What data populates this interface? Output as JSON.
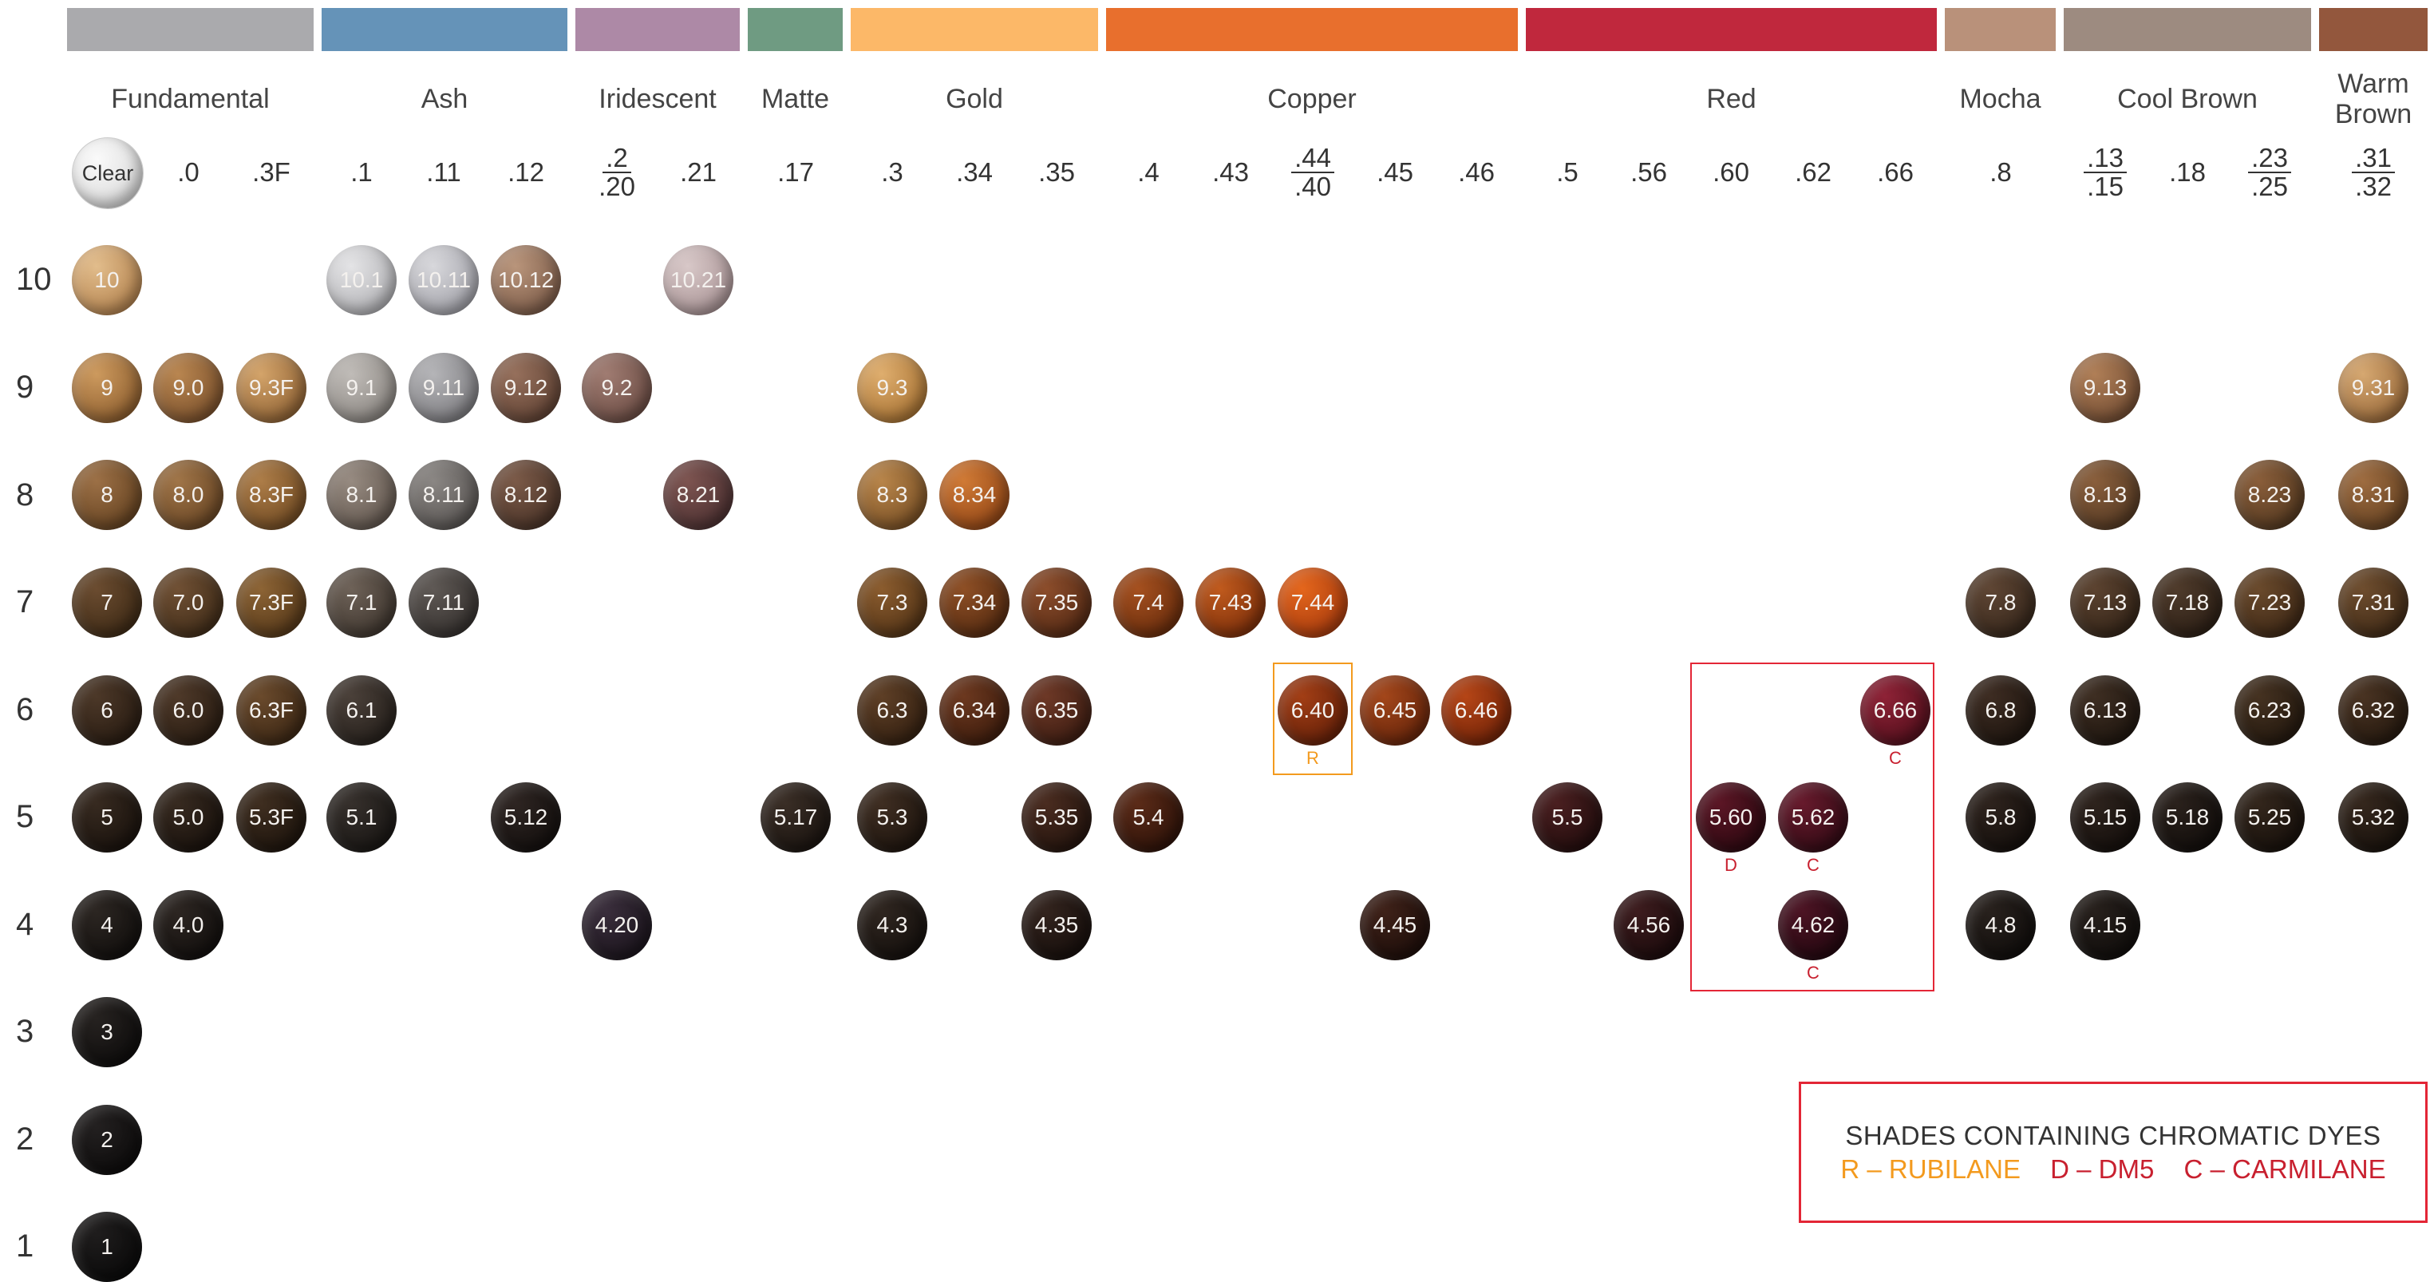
{
  "families": [
    {
      "name": "Fundamental",
      "color": "#aaaaad"
    },
    {
      "name": "Ash",
      "color": "#6593b8"
    },
    {
      "name": "Iridescent",
      "color": "#ad89a6"
    },
    {
      "name": "Matte",
      "color": "#6f9b82"
    },
    {
      "name": "Gold",
      "color": "#fcb868"
    },
    {
      "name": "Copper",
      "color": "#e86f2d"
    },
    {
      "name": "Red",
      "color": "#c0283d"
    },
    {
      "name": "Mocha",
      "color": "#b9917a"
    },
    {
      "name": "Cool Brown",
      "color": "#9d8b80"
    },
    {
      "name": "Warm Brown",
      "color": "#93573d"
    }
  ],
  "columns": [
    {
      "label": "Clear"
    },
    {
      "label": ".0"
    },
    {
      "label": ".3F"
    },
    {
      "label": ".1"
    },
    {
      "label": ".11"
    },
    {
      "label": ".12"
    },
    {
      "label_top": ".2",
      "label_bottom": ".20"
    },
    {
      "label": ".21"
    },
    {
      "label": ".17"
    },
    {
      "label": ".3"
    },
    {
      "label": ".34"
    },
    {
      "label": ".35"
    },
    {
      "label": ".4"
    },
    {
      "label": ".43"
    },
    {
      "label_top": ".44",
      "label_bottom": ".40"
    },
    {
      "label": ".45"
    },
    {
      "label": ".46"
    },
    {
      "label": ".5"
    },
    {
      "label": ".56"
    },
    {
      "label": ".60"
    },
    {
      "label": ".62"
    },
    {
      "label": ".66"
    },
    {
      "label": ".8"
    },
    {
      "label_top": ".13",
      "label_bottom": ".15"
    },
    {
      "label": ".18"
    },
    {
      "label_top": ".23",
      "label_bottom": ".25"
    },
    {
      "label_top": ".31",
      "label_bottom": ".32"
    }
  ],
  "levels": [
    "10",
    "9",
    "8",
    "7",
    "6",
    "5",
    "4",
    "3",
    "2",
    "1"
  ],
  "shades": {
    "clear": "Clear",
    "l10": [
      "10",
      "10.1",
      "10.11",
      "10.12",
      "10.21"
    ],
    "l9": [
      "9",
      "9.0",
      "9.3F",
      "9.1",
      "9.11",
      "9.12",
      "9.2",
      "9.3",
      "9.13",
      "9.31"
    ],
    "l8": [
      "8",
      "8.0",
      "8.3F",
      "8.1",
      "8.11",
      "8.12",
      "8.21",
      "8.3",
      "8.34",
      "8.13",
      "8.23",
      "8.31"
    ],
    "l7": [
      "7",
      "7.0",
      "7.3F",
      "7.1",
      "7.11",
      "7.3",
      "7.34",
      "7.35",
      "7.4",
      "7.43",
      "7.44",
      "7.8",
      "7.13",
      "7.18",
      "7.23",
      "7.31"
    ],
    "l6": [
      "6",
      "6.0",
      "6.3F",
      "6.1",
      "6.3",
      "6.34",
      "6.35",
      "6.40",
      "6.45",
      "6.46",
      "6.66",
      "6.8",
      "6.13",
      "6.23",
      "6.32"
    ],
    "l5": [
      "5",
      "5.0",
      "5.3F",
      "5.1",
      "5.12",
      "5.17",
      "5.3",
      "5.35",
      "5.4",
      "5.5",
      "5.60",
      "5.62",
      "5.8",
      "5.15",
      "5.18",
      "5.25",
      "5.32"
    ],
    "l4": [
      "4",
      "4.0",
      "4.20",
      "4.3",
      "4.35",
      "4.45",
      "4.56",
      "4.62",
      "4.8",
      "4.15"
    ],
    "l3": [
      "3"
    ],
    "l2": [
      "2"
    ],
    "l1": [
      "1"
    ]
  },
  "dye_marks": {
    "r": "R",
    "d": "D",
    "c": "C"
  },
  "legend": {
    "title": "SHADES CONTAINING CHROMATIC DYES",
    "r": "R – RUBILANE",
    "d": "D – DM5",
    "c": "C – CARMILANE",
    "r_color": "#f39a1e",
    "dc_color": "#c8202f"
  }
}
